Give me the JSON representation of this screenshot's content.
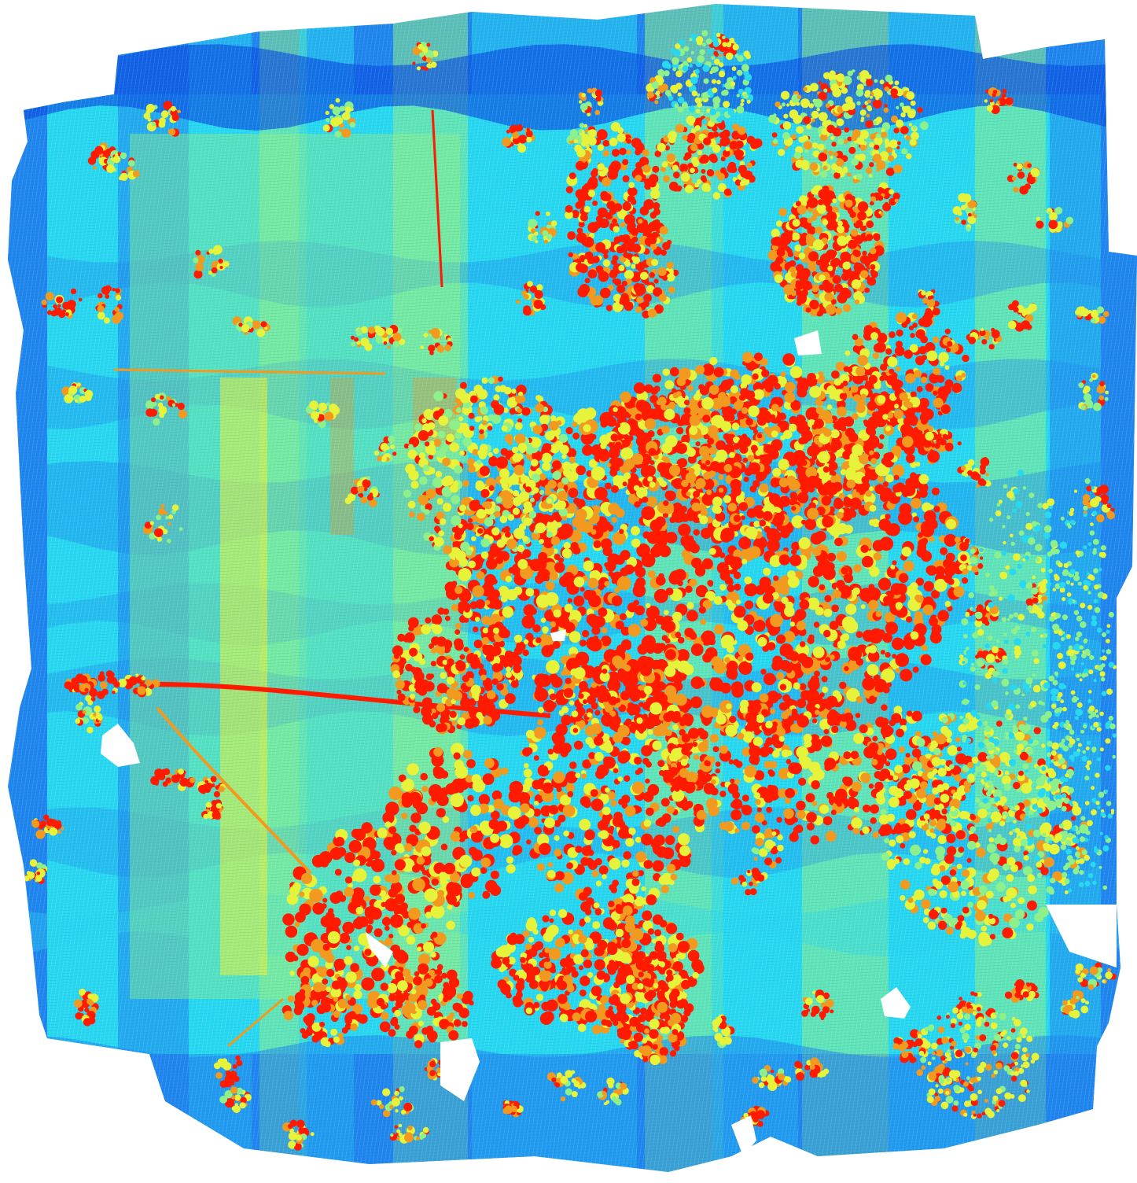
{
  "image": {
    "kind": "lidar-point-density-map",
    "description_visible_text": "",
    "colors": {
      "deep_blue": "#0a4fe0",
      "blue": "#1f86ee",
      "cyan": "#27d8f0",
      "light_green": "#8ef08a",
      "yellow": "#e7f23a",
      "orange": "#f29a1f",
      "red": "#ff1a00",
      "background": "#ffffff"
    }
  }
}
